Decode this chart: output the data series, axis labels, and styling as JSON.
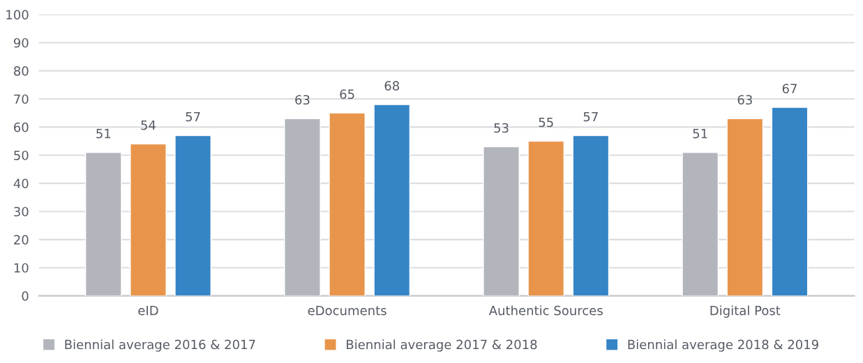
{
  "chart_data": {
    "type": "bar",
    "categories": [
      "eID",
      "eDocuments",
      "Authentic Sources",
      "Digital Post"
    ],
    "series": [
      {
        "name": "Biennial average 2016 & 2017",
        "color": "#b3b5bd",
        "values": [
          51,
          63,
          53,
          51
        ]
      },
      {
        "name": "Biennial average 2017 & 2018",
        "color": "#e8954b",
        "values": [
          54,
          65,
          55,
          63
        ]
      },
      {
        "name": "Biennial average 2018 & 2019",
        "color": "#3585c6",
        "values": [
          57,
          68,
          57,
          67
        ]
      }
    ],
    "ylim": [
      0,
      100
    ],
    "yticks": [
      0,
      10,
      20,
      30,
      40,
      50,
      60,
      70,
      80,
      90,
      100
    ],
    "grid": "y",
    "legend": "bottom",
    "data_labels": true
  }
}
